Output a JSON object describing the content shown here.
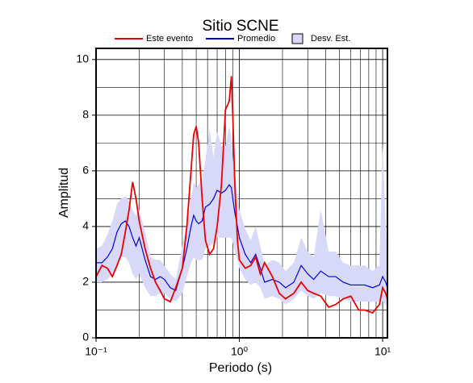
{
  "chart_data": {
    "type": "line",
    "title": "Sitio SCNE",
    "x_label": "Periodo (s)",
    "y_label": "Amplitud",
    "x_scale": "log",
    "grid": true,
    "xlim": [
      0.1,
      10.8
    ],
    "ylim": [
      0,
      10.4
    ],
    "xticks": [
      {
        "value": 0.1,
        "label": "10⁻¹"
      },
      {
        "value": 1,
        "label": "10⁰"
      },
      {
        "value": 10,
        "label": "10¹"
      }
    ],
    "x_minor_ticks": [
      0.2,
      0.3,
      0.4,
      0.5,
      0.6,
      0.7,
      0.8,
      0.9,
      2,
      3,
      4,
      5,
      6,
      7,
      8,
      9
    ],
    "yticks": [
      0,
      2,
      4,
      6,
      8,
      10
    ],
    "y_minor_ticks": [
      1,
      3,
      5,
      7,
      9
    ],
    "x": [
      0.1,
      0.11,
      0.12,
      0.13,
      0.14,
      0.15,
      0.16,
      0.17,
      0.18,
      0.19,
      0.2,
      0.22,
      0.24,
      0.26,
      0.28,
      0.3,
      0.33,
      0.36,
      0.4,
      0.43,
      0.46,
      0.48,
      0.5,
      0.52,
      0.55,
      0.58,
      0.62,
      0.66,
      0.7,
      0.75,
      0.8,
      0.85,
      0.88,
      0.9,
      0.93,
      0.97,
      1.0,
      1.1,
      1.2,
      1.3,
      1.4,
      1.5,
      1.7,
      1.9,
      2.1,
      2.4,
      2.7,
      3.0,
      3.3,
      3.7,
      4.2,
      4.7,
      5.3,
      6,
      6.8,
      7.5,
      8.5,
      9.5,
      10,
      10.5,
      10.8
    ],
    "band": {
      "name": "Desv. Est.",
      "color": "#d8d8f8",
      "lower": [
        2.0,
        2.0,
        2.1,
        2.3,
        2.6,
        2.9,
        2.9,
        2.7,
        2.3,
        2.1,
        2.3,
        1.8,
        1.5,
        1.5,
        1.6,
        1.6,
        1.4,
        1.3,
        1.6,
        2.2,
        2.7,
        2.9,
        2.8,
        2.8,
        2.8,
        3.2,
        3.3,
        3.4,
        3.6,
        3.6,
        3.6,
        3.6,
        3.6,
        3.4,
        3.1,
        2.8,
        2.5,
        2.1,
        1.9,
        2.0,
        1.8,
        1.4,
        1.5,
        1.4,
        1.2,
        1.4,
        1.7,
        1.5,
        1.4,
        1.6,
        1.5,
        1.5,
        1.4,
        1.3,
        1.3,
        1.3,
        1.3,
        1.3,
        1.3,
        1.2,
        1.1
      ],
      "upper": [
        3.2,
        3.3,
        3.7,
        4.2,
        4.8,
        5.0,
        5.1,
        4.9,
        4.6,
        4.4,
        4.6,
        3.8,
        2.9,
        2.8,
        2.8,
        2.6,
        2.3,
        2.1,
        3.3,
        4.1,
        5.0,
        5.6,
        5.4,
        5.5,
        5.7,
        6.4,
        7.5,
        6.5,
        7.4,
        6.9,
        6.9,
        7.6,
        7.2,
        6.4,
        5.9,
        5.2,
        4.6,
        3.9,
        3.5,
        4.0,
        3.3,
        2.6,
        2.8,
        2.7,
        2.4,
        2.7,
        3.6,
        3.1,
        2.9,
        4.6,
        3.1,
        3.1,
        2.7,
        2.6,
        2.6,
        2.6,
        2.4,
        2.6,
        7.0,
        4.2,
        2.8
      ]
    },
    "series": [
      {
        "name": "Promedio",
        "color": "#0000dd",
        "values": [
          2.7,
          2.7,
          2.9,
          3.2,
          3.8,
          4.1,
          4.2,
          4.0,
          3.6,
          3.3,
          3.6,
          2.8,
          2.2,
          2.1,
          2.2,
          2.1,
          1.8,
          1.7,
          2.5,
          3.2,
          4.0,
          4.4,
          4.2,
          4.1,
          4.2,
          4.7,
          4.8,
          5.0,
          5.3,
          5.2,
          5.3,
          5.5,
          5.4,
          5.0,
          4.5,
          4.0,
          3.6,
          3.0,
          2.7,
          3.0,
          2.5,
          2.0,
          2.1,
          2.0,
          1.8,
          2.0,
          2.6,
          2.3,
          2.1,
          2.4,
          2.2,
          2.2,
          2.0,
          1.9,
          1.9,
          1.9,
          1.8,
          1.9,
          2.2,
          2.0,
          1.8
        ]
      },
      {
        "name": "Este evento",
        "color": "#ee0000",
        "values": [
          2.2,
          2.6,
          2.5,
          2.2,
          2.6,
          3.0,
          3.8,
          4.6,
          5.6,
          5.0,
          4.2,
          3.2,
          2.5,
          2.0,
          1.7,
          1.4,
          1.3,
          1.8,
          2.5,
          4.0,
          6.0,
          7.3,
          7.6,
          7.0,
          5.0,
          3.5,
          3.0,
          3.2,
          4.0,
          5.5,
          8.2,
          8.5,
          9.4,
          8.0,
          5.5,
          3.5,
          2.8,
          2.5,
          2.6,
          2.9,
          2.3,
          2.7,
          2.2,
          1.6,
          1.4,
          1.6,
          2.0,
          1.7,
          1.6,
          1.5,
          1.1,
          1.2,
          1.4,
          1.5,
          1.0,
          1.0,
          0.9,
          1.2,
          1.8,
          1.6,
          1.4
        ]
      }
    ]
  }
}
